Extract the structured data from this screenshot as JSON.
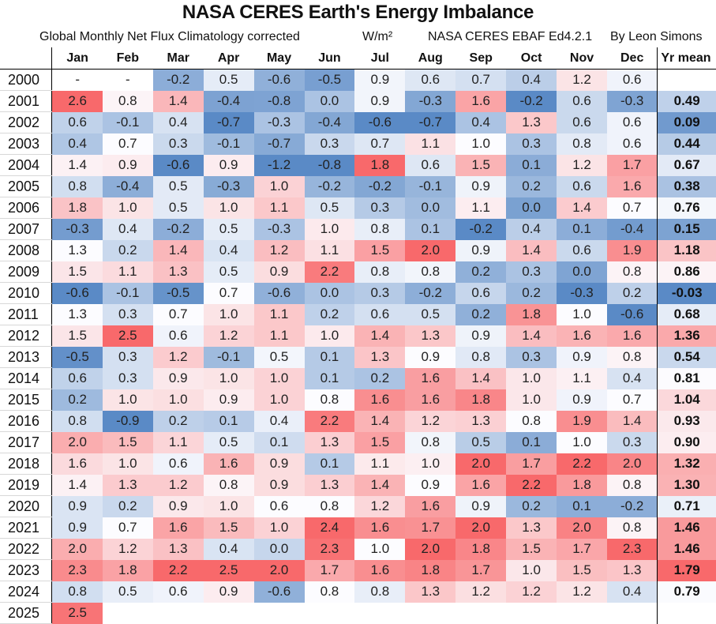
{
  "title": "NASA CERES Earth's Energy Imbalance",
  "subtitle_left": "Global Monthly Net Flux Climatology corrected",
  "unit": "W/m²",
  "source": "NASA CERES EBAF Ed4.2.1",
  "author": "By Leon Simons",
  "colors": {
    "low": "#5a8ac6",
    "mid": "#fcfcff",
    "high": "#f8696b"
  },
  "chart_data": {
    "type": "heatmap",
    "title": "NASA CERES Earth's Energy Imbalance",
    "subtitle": "Global Monthly Net Flux Climatology corrected",
    "unit": "W/m²",
    "color_scale": "per-column 3-color scale: min blue, median white, max red",
    "columns": [
      "Jan",
      "Feb",
      "Mar",
      "Apr",
      "May",
      "Jun",
      "Jul",
      "Aug",
      "Sep",
      "Oct",
      "Nov",
      "Dec"
    ],
    "mean_header": "Yr mean",
    "rows": [
      {
        "year": "2000",
        "values": [
          "-",
          "-",
          "-0.2",
          "0.5",
          "-0.6",
          "-0.5",
          "0.9",
          "0.6",
          "0.7",
          "0.4",
          "1.2",
          "0.6"
        ],
        "mean": ""
      },
      {
        "year": "2001",
        "values": [
          "2.6",
          "0.8",
          "1.4",
          "-0.4",
          "-0.8",
          "0.0",
          "0.9",
          "-0.3",
          "1.6",
          "-0.2",
          "0.6",
          "-0.3"
        ],
        "mean": "0.49"
      },
      {
        "year": "2002",
        "values": [
          "0.6",
          "-0.1",
          "0.4",
          "-0.7",
          "-0.3",
          "-0.4",
          "-0.6",
          "-0.7",
          "0.4",
          "1.3",
          "0.6",
          "0.6"
        ],
        "mean": "0.09"
      },
      {
        "year": "2003",
        "values": [
          "0.4",
          "0.7",
          "0.3",
          "-0.1",
          "-0.7",
          "0.3",
          "0.7",
          "1.1",
          "1.0",
          "0.3",
          "0.8",
          "0.6"
        ],
        "mean": "0.44"
      },
      {
        "year": "2004",
        "values": [
          "1.4",
          "0.9",
          "-0.6",
          "0.9",
          "-1.2",
          "-0.8",
          "1.8",
          "0.6",
          "1.5",
          "0.1",
          "1.2",
          "1.7"
        ],
        "mean": "0.67"
      },
      {
        "year": "2005",
        "values": [
          "0.8",
          "-0.4",
          "0.5",
          "-0.3",
          "1.0",
          "-0.2",
          "-0.2",
          "-0.1",
          "0.9",
          "0.2",
          "0.6",
          "1.6"
        ],
        "mean": "0.38"
      },
      {
        "year": "2006",
        "values": [
          "1.8",
          "1.0",
          "0.5",
          "1.0",
          "1.1",
          "0.5",
          "0.3",
          "0.0",
          "1.1",
          "0.0",
          "1.4",
          "0.7"
        ],
        "mean": "0.76"
      },
      {
        "year": "2007",
        "values": [
          "-0.3",
          "0.4",
          "-0.2",
          "0.5",
          "-0.3",
          "1.0",
          "0.8",
          "0.1",
          "-0.2",
          "0.4",
          "0.1",
          "-0.4"
        ],
        "mean": "0.15"
      },
      {
        "year": "2008",
        "values": [
          "1.3",
          "0.2",
          "1.4",
          "0.4",
          "1.2",
          "1.1",
          "1.5",
          "2.0",
          "0.9",
          "1.4",
          "0.6",
          "1.9"
        ],
        "mean": "1.18"
      },
      {
        "year": "2009",
        "values": [
          "1.5",
          "1.1",
          "1.3",
          "0.5",
          "0.9",
          "2.2",
          "0.8",
          "0.8",
          "0.2",
          "0.3",
          "0.0",
          "0.8"
        ],
        "mean": "0.86"
      },
      {
        "year": "2010",
        "values": [
          "-0.6",
          "-0.1",
          "-0.5",
          "0.7",
          "-0.6",
          "0.0",
          "0.3",
          "-0.2",
          "0.6",
          "0.2",
          "-0.3",
          "0.2"
        ],
        "mean": "-0.03"
      },
      {
        "year": "2011",
        "values": [
          "1.3",
          "0.3",
          "0.7",
          "1.0",
          "1.1",
          "0.2",
          "0.6",
          "0.5",
          "0.2",
          "1.8",
          "1.0",
          "-0.6"
        ],
        "mean": "0.68"
      },
      {
        "year": "2012",
        "values": [
          "1.5",
          "2.5",
          "0.6",
          "1.2",
          "1.1",
          "1.0",
          "1.4",
          "1.3",
          "0.9",
          "1.4",
          "1.6",
          "1.6"
        ],
        "mean": "1.36"
      },
      {
        "year": "2013",
        "values": [
          "-0.5",
          "0.3",
          "1.2",
          "-0.1",
          "0.5",
          "0.1",
          "1.3",
          "0.9",
          "0.8",
          "0.3",
          "0.9",
          "0.8"
        ],
        "mean": "0.54"
      },
      {
        "year": "2014",
        "values": [
          "0.6",
          "0.3",
          "0.9",
          "1.0",
          "1.0",
          "0.1",
          "0.2",
          "1.6",
          "1.4",
          "1.0",
          "1.1",
          "0.4"
        ],
        "mean": "0.81"
      },
      {
        "year": "2015",
        "values": [
          "0.2",
          "1.0",
          "1.0",
          "0.9",
          "1.0",
          "0.8",
          "1.6",
          "1.6",
          "1.8",
          "1.0",
          "0.9",
          "0.7"
        ],
        "mean": "1.04"
      },
      {
        "year": "2016",
        "values": [
          "0.8",
          "-0.9",
          "0.2",
          "0.1",
          "0.4",
          "2.2",
          "1.4",
          "1.2",
          "1.3",
          "0.8",
          "1.9",
          "1.4"
        ],
        "mean": "0.93"
      },
      {
        "year": "2017",
        "values": [
          "2.0",
          "1.5",
          "1.1",
          "0.5",
          "0.1",
          "1.3",
          "1.5",
          "0.8",
          "0.5",
          "0.1",
          "1.0",
          "0.3"
        ],
        "mean": "0.90"
      },
      {
        "year": "2018",
        "values": [
          "1.6",
          "1.0",
          "0.6",
          "1.6",
          "0.9",
          "0.1",
          "1.1",
          "1.0",
          "2.0",
          "1.7",
          "2.2",
          "2.0"
        ],
        "mean": "1.32"
      },
      {
        "year": "2019",
        "values": [
          "1.4",
          "1.3",
          "1.2",
          "0.8",
          "0.9",
          "1.3",
          "1.4",
          "0.9",
          "1.6",
          "2.2",
          "1.8",
          "0.8"
        ],
        "mean": "1.30"
      },
      {
        "year": "2020",
        "values": [
          "0.9",
          "0.2",
          "0.9",
          "1.0",
          "0.6",
          "0.8",
          "1.2",
          "1.6",
          "0.9",
          "0.2",
          "0.1",
          "-0.2"
        ],
        "mean": "0.71"
      },
      {
        "year": "2021",
        "values": [
          "0.9",
          "0.7",
          "1.6",
          "1.5",
          "1.0",
          "2.4",
          "1.6",
          "1.7",
          "2.0",
          "1.3",
          "2.0",
          "0.8"
        ],
        "mean": "1.46"
      },
      {
        "year": "2022",
        "values": [
          "2.0",
          "1.2",
          "1.3",
          "0.4",
          "0.0",
          "2.3",
          "1.0",
          "2.0",
          "1.8",
          "1.5",
          "1.7",
          "2.3"
        ],
        "mean": "1.46"
      },
      {
        "year": "2023",
        "values": [
          "2.3",
          "1.8",
          "2.2",
          "2.5",
          "2.0",
          "1.7",
          "1.6",
          "1.8",
          "1.7",
          "1.0",
          "1.5",
          "1.3"
        ],
        "mean": "1.79"
      },
      {
        "year": "2024",
        "values": [
          "0.8",
          "0.5",
          "0.6",
          "0.9",
          "-0.6",
          "0.8",
          "0.8",
          "1.3",
          "1.2",
          "1.2",
          "1.2",
          "0.4"
        ],
        "mean": "0.79"
      },
      {
        "year": "2025",
        "values": [
          "2.5",
          "",
          "",
          "",
          "",
          "",
          "",
          "",
          "",
          "",
          "",
          ""
        ],
        "mean": ""
      }
    ]
  }
}
